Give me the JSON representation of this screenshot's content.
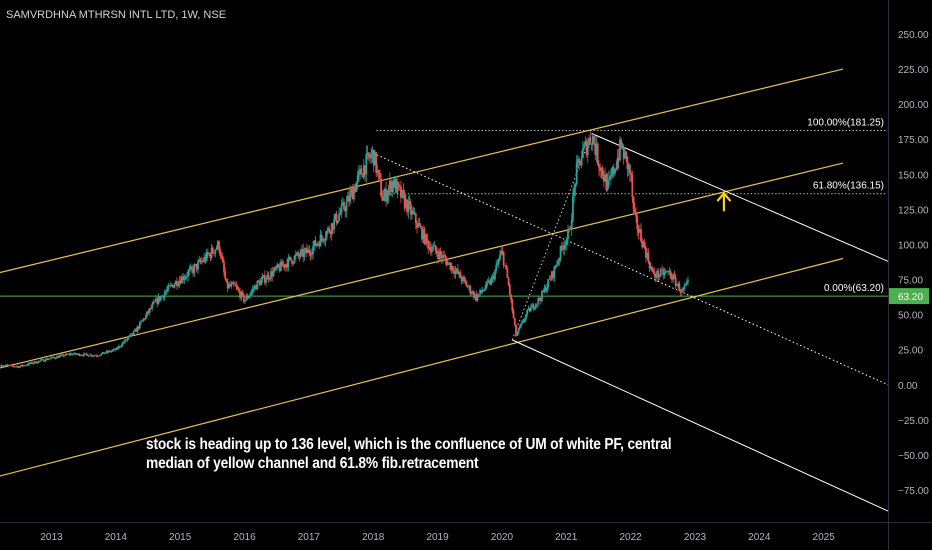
{
  "header": {
    "symbol_title": "SAMVRDHNA MTHRSN INTL LTD, 1W, NSE"
  },
  "annotation": {
    "text": "stock is heading up to 136 level, which is the confluence of UM of white PF, central median of yellow channel and 61.8% fib.retracement"
  },
  "colors": {
    "background": "#000000",
    "up": "#26a69a",
    "down": "#ef5350",
    "channel": "#e8c547",
    "pitchfork": "#ffffff",
    "support": "#4caf50",
    "arrow": "#f5d020",
    "axis_text": "#b2b5be"
  },
  "chart_data": {
    "type": "candlestick",
    "title": "SAMVRDHNA MTHRSN INTL LTD, 1W, NSE",
    "x_axis": {
      "ticks": [
        "2013",
        "2014",
        "2015",
        "2016",
        "2017",
        "2018",
        "2019",
        "2020",
        "2021",
        "2022",
        "2023",
        "2024",
        "2025"
      ],
      "range": [
        2012.2,
        2026.0
      ]
    },
    "y_axis": {
      "ticks": [
        "250.00",
        "225.00",
        "200.00",
        "175.00",
        "150.00",
        "125.00",
        "100.00",
        "75.00",
        "50.00",
        "25.00",
        "0.00",
        "−25.00",
        "−50.00",
        "−75.00"
      ],
      "tick_values": [
        250,
        225,
        200,
        175,
        150,
        125,
        100,
        75,
        50,
        25,
        0,
        -25,
        -50,
        -75
      ],
      "range": [
        -95,
        268
      ]
    },
    "price_points": [
      {
        "x": 2012.2,
        "y": 14
      },
      {
        "x": 2012.5,
        "y": 13
      },
      {
        "x": 2012.9,
        "y": 18
      },
      {
        "x": 2013.3,
        "y": 22
      },
      {
        "x": 2013.7,
        "y": 21
      },
      {
        "x": 2014.0,
        "y": 25
      },
      {
        "x": 2014.3,
        "y": 38
      },
      {
        "x": 2014.6,
        "y": 58
      },
      {
        "x": 2014.9,
        "y": 72
      },
      {
        "x": 2015.2,
        "y": 82
      },
      {
        "x": 2015.5,
        "y": 95
      },
      {
        "x": 2015.6,
        "y": 100
      },
      {
        "x": 2015.72,
        "y": 70
      },
      {
        "x": 2015.85,
        "y": 70
      },
      {
        "x": 2016.0,
        "y": 60
      },
      {
        "x": 2016.2,
        "y": 72
      },
      {
        "x": 2016.5,
        "y": 82
      },
      {
        "x": 2016.75,
        "y": 90
      },
      {
        "x": 2017.0,
        "y": 95
      },
      {
        "x": 2017.3,
        "y": 110
      },
      {
        "x": 2017.6,
        "y": 130
      },
      {
        "x": 2017.85,
        "y": 155
      },
      {
        "x": 2018.0,
        "y": 165
      },
      {
        "x": 2018.15,
        "y": 132
      },
      {
        "x": 2018.3,
        "y": 145
      },
      {
        "x": 2018.6,
        "y": 122
      },
      {
        "x": 2018.85,
        "y": 100
      },
      {
        "x": 2019.1,
        "y": 90
      },
      {
        "x": 2019.3,
        "y": 80
      },
      {
        "x": 2019.6,
        "y": 62
      },
      {
        "x": 2019.85,
        "y": 75
      },
      {
        "x": 2020.0,
        "y": 95
      },
      {
        "x": 2020.1,
        "y": 72
      },
      {
        "x": 2020.22,
        "y": 35
      },
      {
        "x": 2020.4,
        "y": 52
      },
      {
        "x": 2020.6,
        "y": 62
      },
      {
        "x": 2020.8,
        "y": 80
      },
      {
        "x": 2020.95,
        "y": 100
      },
      {
        "x": 2021.05,
        "y": 108
      },
      {
        "x": 2021.15,
        "y": 150
      },
      {
        "x": 2021.25,
        "y": 165
      },
      {
        "x": 2021.4,
        "y": 178
      },
      {
        "x": 2021.5,
        "y": 160
      },
      {
        "x": 2021.65,
        "y": 140
      },
      {
        "x": 2021.85,
        "y": 170
      },
      {
        "x": 2022.0,
        "y": 150
      },
      {
        "x": 2022.05,
        "y": 120
      },
      {
        "x": 2022.2,
        "y": 100
      },
      {
        "x": 2022.35,
        "y": 78
      },
      {
        "x": 2022.6,
        "y": 80
      },
      {
        "x": 2022.8,
        "y": 66
      },
      {
        "x": 2022.9,
        "y": 72
      }
    ],
    "fib_levels": [
      {
        "label": "100.00%(181.25)",
        "value": 181.25
      },
      {
        "label": "61.80%(136.15)",
        "value": 136.15
      },
      {
        "label": "0.00%(63.20)",
        "value": 63.2
      }
    ],
    "price_tag": {
      "label": "63.20",
      "value": 63.2
    },
    "yellow_channel": {
      "lines": [
        {
          "x1": 2012.2,
          "y1": 80,
          "x2": 2025.3,
          "y2": 225
        },
        {
          "x1": 2012.2,
          "y1": 12,
          "x2": 2025.3,
          "y2": 158
        },
        {
          "x1": 2012.2,
          "y1": -65,
          "x2": 2025.3,
          "y2": 90
        }
      ]
    },
    "white_pitchfork": {
      "lines": [
        {
          "x1": 2021.4,
          "y1": 179,
          "x2": 2026.0,
          "y2": 88
        },
        {
          "x1": 2020.16,
          "y1": 32,
          "x2": 2026.0,
          "y2": -90
        },
        {
          "x1": 2018.0,
          "y1": 165,
          "x2": 2026.0,
          "y2": 0
        }
      ]
    },
    "arrow": {
      "x": 2023.45,
      "y": 130
    }
  }
}
